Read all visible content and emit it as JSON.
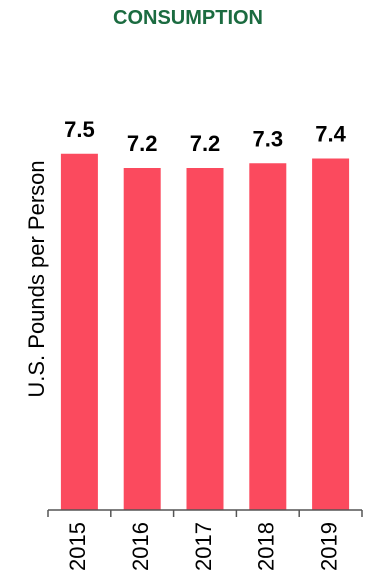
{
  "chart_data": {
    "type": "bar",
    "title": "CONSUMPTION",
    "ylabel": "U.S. Pounds per Person",
    "xlabel": "",
    "categories": [
      "2015",
      "2016",
      "2017",
      "2018",
      "2019"
    ],
    "values": [
      7.5,
      7.2,
      7.2,
      7.3,
      7.4
    ],
    "value_labels": [
      "7.5",
      "7.2",
      "7.2",
      "7.3",
      "7.4"
    ],
    "ylim": [
      0,
      8
    ],
    "grid": false,
    "legend": "none",
    "colors": {
      "bar": "#fb4a5e",
      "title": "#1b6b40",
      "axis": "#555555"
    }
  }
}
